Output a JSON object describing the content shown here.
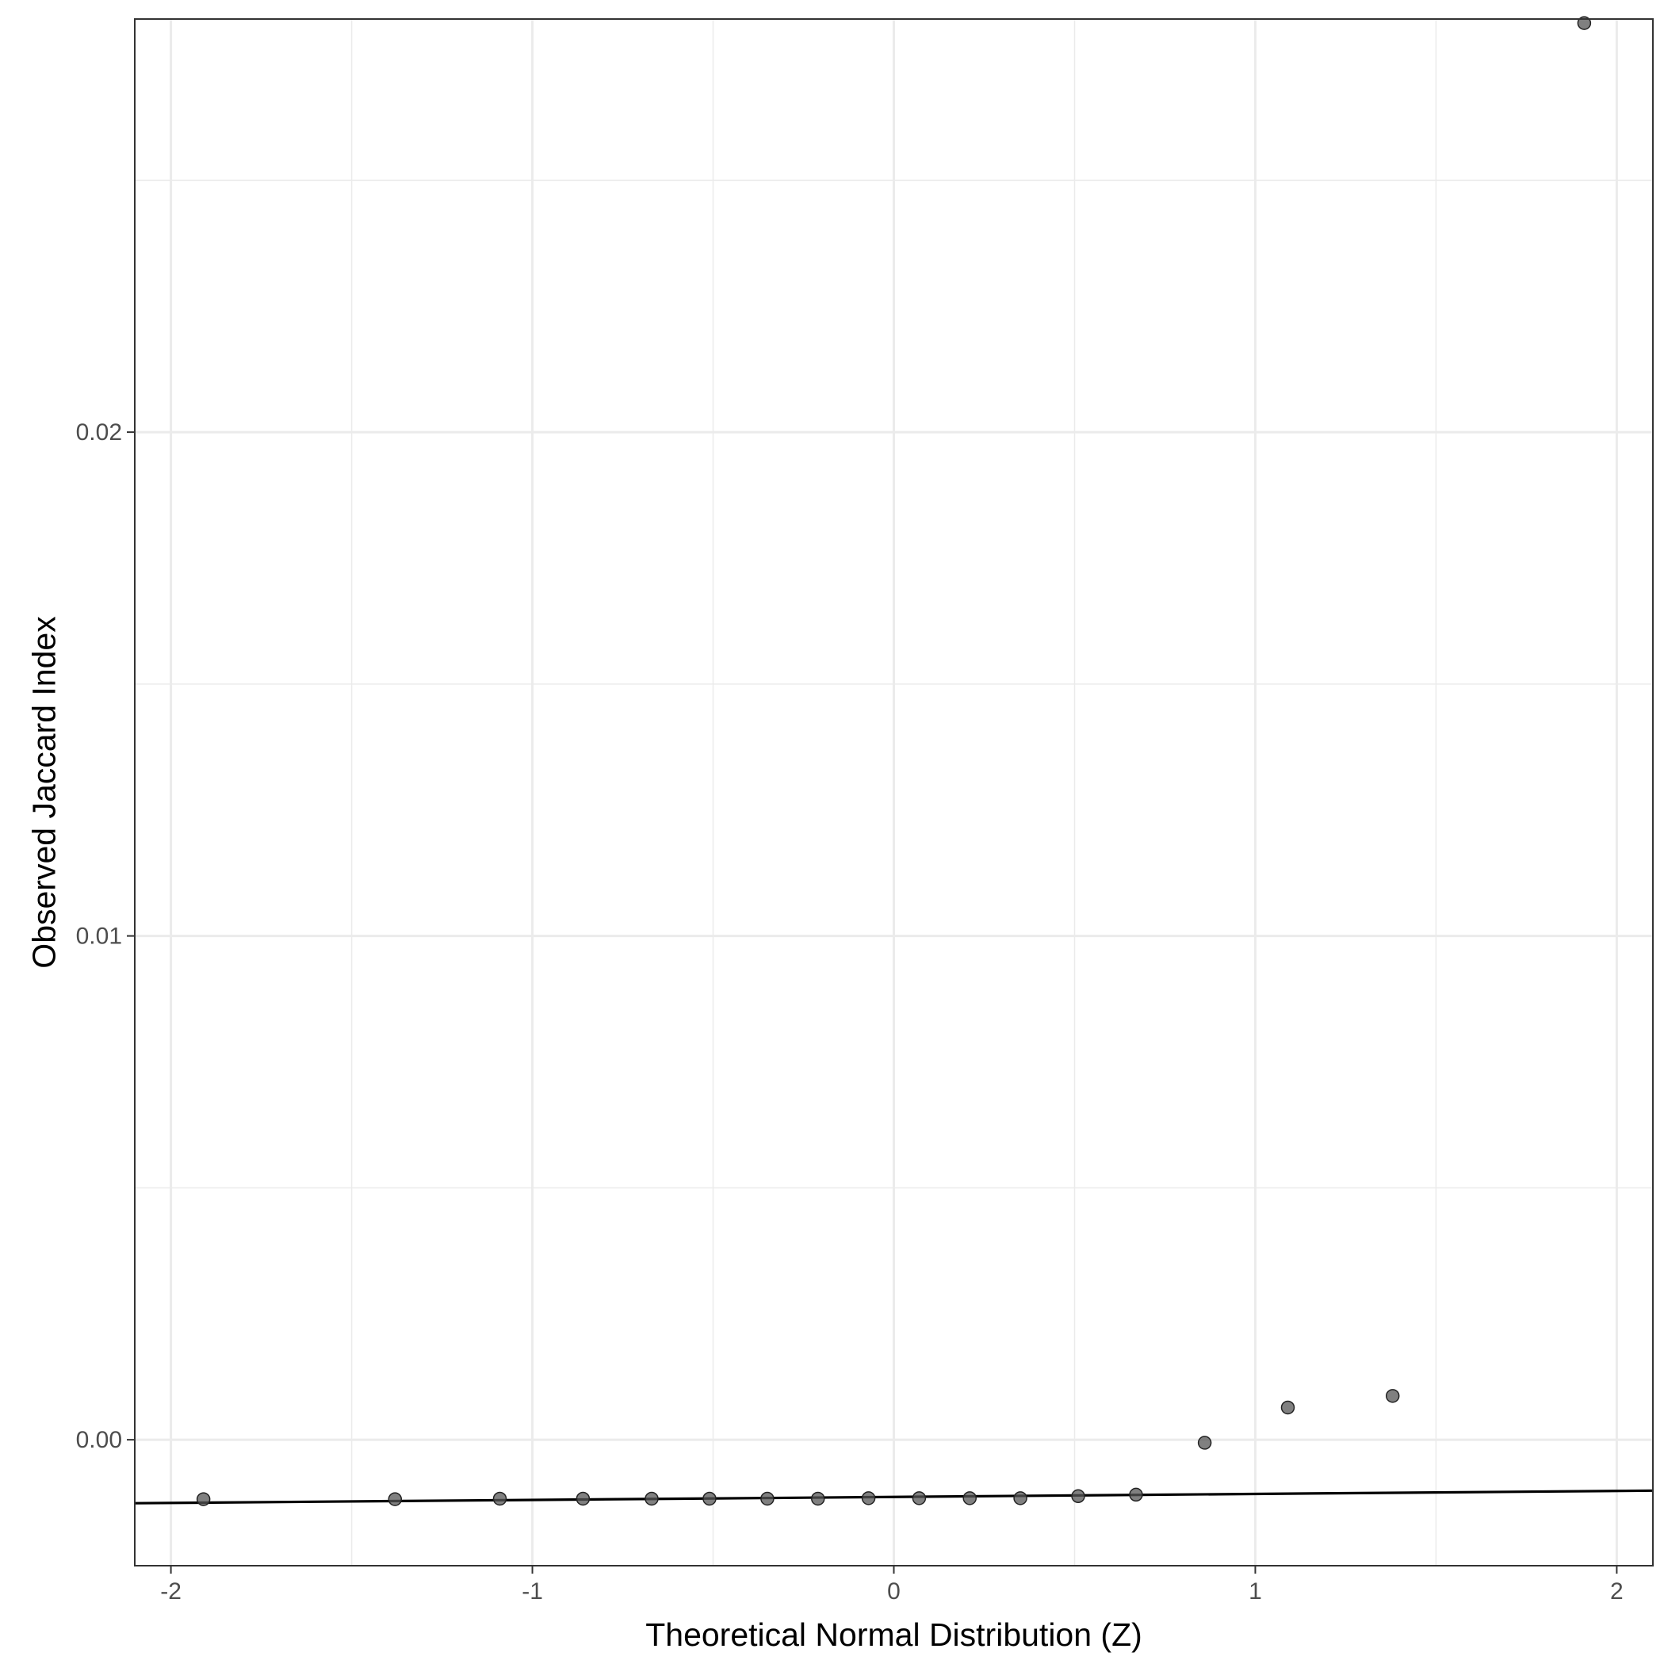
{
  "chart_data": {
    "type": "scatter",
    "xlabel": "Theoretical Normal Distribution (Z)",
    "ylabel": "Observed Jaccard Index",
    "xlim": [
      -2.1,
      2.1
    ],
    "ylim": [
      -0.0025,
      0.0282
    ],
    "x_ticks": [
      -2,
      -1,
      0,
      1,
      2
    ],
    "x_tick_labels": [
      "-2",
      "-1",
      "0",
      "1",
      "2"
    ],
    "y_ticks": [
      0.0,
      0.01,
      0.02
    ],
    "y_tick_labels": [
      "0.00",
      "0.01",
      "0.02"
    ],
    "grid": true,
    "points": [
      {
        "x": -1.91,
        "y": -0.00118
      },
      {
        "x": -1.38,
        "y": -0.00118
      },
      {
        "x": -1.09,
        "y": -0.00117
      },
      {
        "x": -0.86,
        "y": -0.00117
      },
      {
        "x": -0.67,
        "y": -0.00117
      },
      {
        "x": -0.51,
        "y": -0.00117
      },
      {
        "x": -0.35,
        "y": -0.00117
      },
      {
        "x": -0.21,
        "y": -0.00117
      },
      {
        "x": -0.07,
        "y": -0.00116
      },
      {
        "x": 0.07,
        "y": -0.00116
      },
      {
        "x": 0.21,
        "y": -0.00116
      },
      {
        "x": 0.35,
        "y": -0.00116
      },
      {
        "x": 0.51,
        "y": -0.00112
      },
      {
        "x": 0.67,
        "y": -0.00109
      },
      {
        "x": 0.86,
        "y": -6e-05
      },
      {
        "x": 1.09,
        "y": 0.00064
      },
      {
        "x": 1.38,
        "y": 0.00087
      },
      {
        "x": 1.91,
        "y": 0.02812
      }
    ],
    "reference_line": {
      "x": [
        -2.1,
        2.1
      ],
      "y": [
        -0.00126,
        -0.00101
      ]
    },
    "colors": {
      "points": "#555555",
      "line": "#000000",
      "grid": "#ebebeb",
      "panel_border": "#333333"
    }
  }
}
